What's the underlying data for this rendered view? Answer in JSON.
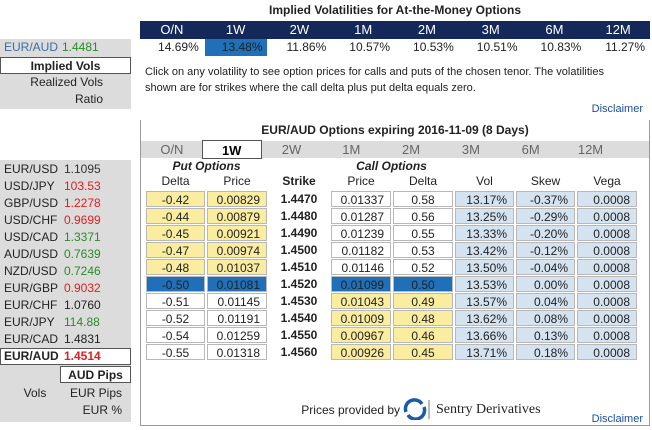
{
  "left": {
    "pair": "EUR/AUD",
    "rate": "1.4481",
    "menu": [
      "Implied Vols",
      "Realized Vols",
      "Ratio"
    ],
    "quotes": [
      {
        "pair": "EUR/USD",
        "rate": "1.1095",
        "color": "#333333"
      },
      {
        "pair": "USD/JPY",
        "rate": "103.53",
        "color": "#e02020"
      },
      {
        "pair": "GBP/USD",
        "rate": "1.2278",
        "color": "#e02020"
      },
      {
        "pair": "USD/CHF",
        "rate": "0.9699",
        "color": "#e02020"
      },
      {
        "pair": "USD/CAD",
        "rate": "1.3371",
        "color": "#2a8a2a"
      },
      {
        "pair": "AUD/USD",
        "rate": "0.7639",
        "color": "#2a8a2a"
      },
      {
        "pair": "NZD/USD",
        "rate": "0.7246",
        "color": "#2a8a2a"
      },
      {
        "pair": "EUR/GBP",
        "rate": "0.9032",
        "color": "#e02020"
      },
      {
        "pair": "EUR/CHF",
        "rate": "1.0760",
        "color": "#222222"
      },
      {
        "pair": "EUR/JPY",
        "rate": "114.88",
        "color": "#2a8a2a"
      },
      {
        "pair": "EUR/CAD",
        "rate": "1.4831",
        "color": "#222222"
      },
      {
        "pair": "EUR/AUD",
        "rate": "1.4514",
        "color": "#e02020"
      }
    ],
    "units": {
      "selected": "AUD Pips",
      "label": "Vols",
      "options": [
        "EUR Pips",
        "EUR %"
      ]
    }
  },
  "atm": {
    "title": "Implied Volatilities for At-the-Money Options",
    "tenors": [
      "O/N",
      "1W",
      "2W",
      "1M",
      "2M",
      "3M",
      "6M",
      "12M"
    ],
    "vols": [
      "14.69%",
      "13.48%",
      "11.86%",
      "10.57%",
      "10.53%",
      "10.51%",
      "10.83%",
      "11.27%"
    ],
    "note": [
      "Click on any volatility to see option prices for calls and puts of the chosen tenor. The volatilities",
      "shown are for strikes where the call delta plus put delta equals zero."
    ],
    "disclaimer": "Disclaimer"
  },
  "chain": {
    "title": "EUR/AUD Options expiring 2016-11-09 (8 Days)",
    "tabs": [
      "O/N",
      "1W",
      "2W",
      "1M",
      "2M",
      "3M",
      "6M",
      "12M"
    ],
    "put_header": "Put Options",
    "call_header": "Call Options",
    "columns": [
      "Delta",
      "Price",
      "Strike",
      "Price",
      "Delta",
      "Vol",
      "Skew",
      "Vega"
    ],
    "rows": [
      [
        "-0.42",
        "0.00829",
        "1.4470",
        "0.01337",
        "0.58",
        "13.17%",
        "-0.37%",
        "0.0008"
      ],
      [
        "-0.44",
        "0.00879",
        "1.4480",
        "0.01287",
        "0.56",
        "13.25%",
        "-0.29%",
        "0.0008"
      ],
      [
        "-0.45",
        "0.00921",
        "1.4490",
        "0.01239",
        "0.55",
        "13.33%",
        "-0.20%",
        "0.0008"
      ],
      [
        "-0.47",
        "0.00974",
        "1.4500",
        "0.01182",
        "0.53",
        "13.42%",
        "-0.12%",
        "0.0008"
      ],
      [
        "-0.48",
        "0.01037",
        "1.4510",
        "0.01146",
        "0.52",
        "13.50%",
        "-0.04%",
        "0.0008"
      ],
      [
        "-0.50",
        "0.01081",
        "1.4520",
        "0.01099",
        "0.50",
        "13.53%",
        "0.00%",
        "0.0008"
      ],
      [
        "-0.51",
        "0.01145",
        "1.4530",
        "0.01043",
        "0.49",
        "13.57%",
        "0.04%",
        "0.0008"
      ],
      [
        "-0.52",
        "0.01191",
        "1.4540",
        "0.01009",
        "0.48",
        "13.62%",
        "0.08%",
        "0.0008"
      ],
      [
        "-0.54",
        "0.01259",
        "1.4550",
        "0.00967",
        "0.46",
        "13.66%",
        "0.13%",
        "0.0008"
      ],
      [
        "-0.55",
        "0.01318",
        "1.4560",
        "0.00926",
        "0.45",
        "13.71%",
        "0.18%",
        "0.0008"
      ]
    ]
  },
  "footer": {
    "provided": "Prices provided by",
    "brand": "Sentry Derivatives",
    "disclaimer": "Disclaimer"
  }
}
